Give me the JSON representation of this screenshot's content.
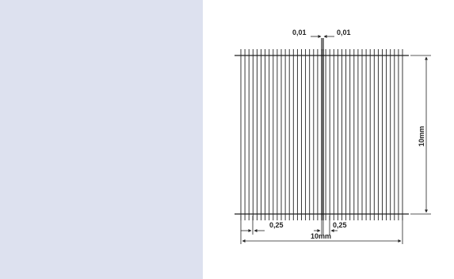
{
  "diagram": {
    "top_left_label": "0,01",
    "top_right_label": "0,01",
    "bottom_left_label": "0,25",
    "bottom_right_label": "0,25",
    "width_label": "10mm",
    "height_label": "10mm",
    "colors": {
      "line": "#222222",
      "background": "#ffffff",
      "panel": "#dde1ef"
    }
  }
}
